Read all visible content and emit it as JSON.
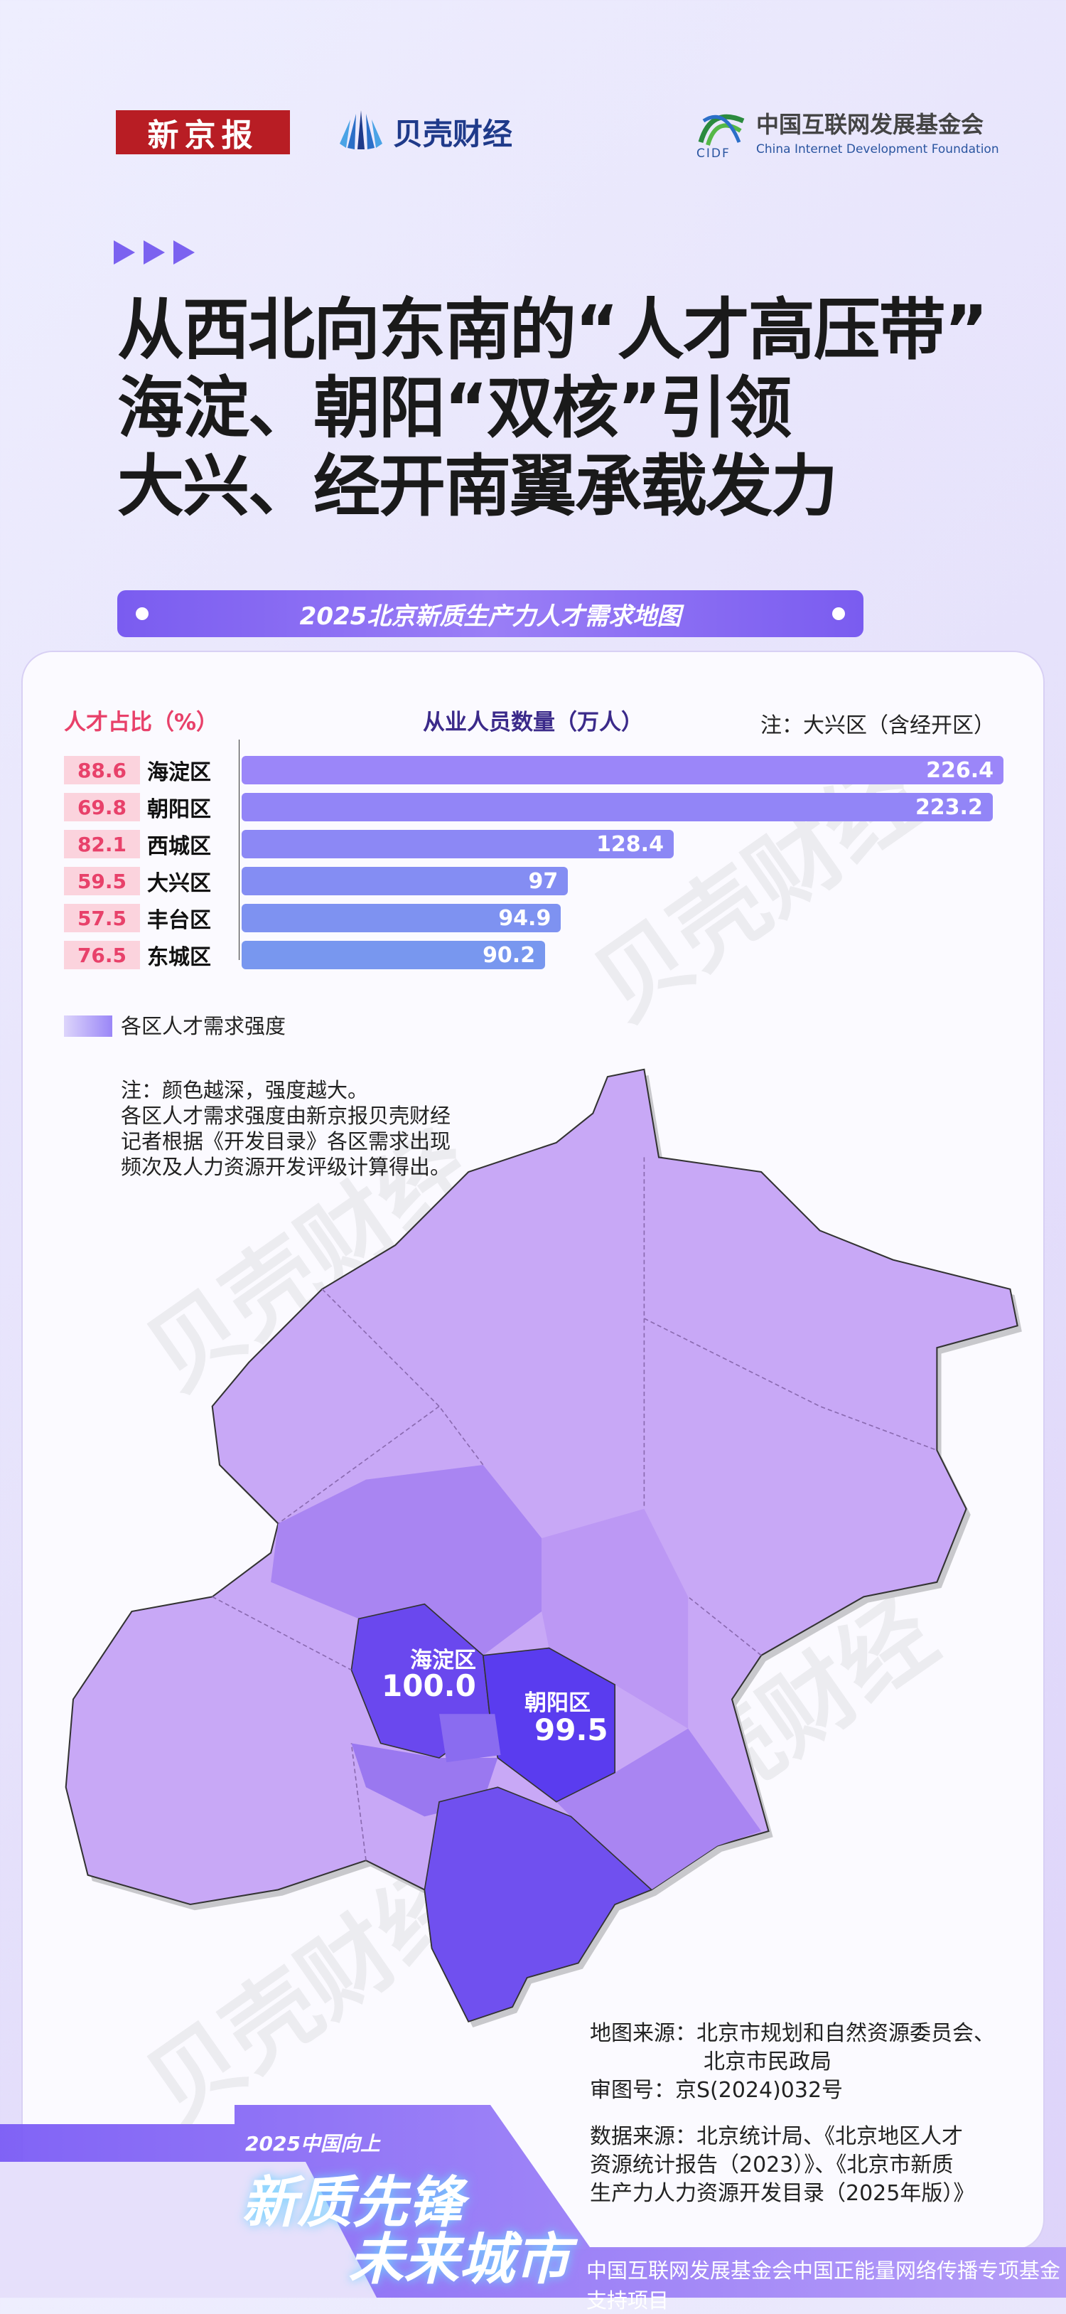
{
  "header": {
    "logos": [
      "新京报",
      "贝壳财经",
      "中国互联网发展基金会"
    ],
    "cidf_abbr": "CIDF",
    "cidf_en": "China Internet Development Foundation"
  },
  "title": {
    "lines": [
      "从西北向东南的“人才高压带”",
      "海淀、朝阳“双核”引领",
      "大兴、经开南翼承载发力"
    ]
  },
  "banner": "2025北京新质生产力人才需求地图",
  "chart_data": {
    "type": "bar",
    "orientation": "horizontal",
    "left_header": "人才占比（%）",
    "title": "从业人员数量（万人）",
    "note": "注：大兴区（含经开区）",
    "categories": [
      "海淀区",
      "朝阳区",
      "西城区",
      "大兴区",
      "丰台区",
      "东城区"
    ],
    "talent_share": [
      "88.6",
      "69.8",
      "82.1",
      "59.5",
      "57.5",
      "76.5"
    ],
    "values": [
      226.4,
      223.2,
      128.4,
      97,
      94.9,
      90.2
    ],
    "value_labels": [
      "226.4",
      "223.2",
      "128.4",
      "97",
      "94.9",
      "90.2"
    ],
    "bar_colors": [
      "#9b86f9",
      "#9285f7",
      "#8c88f5",
      "#848df3",
      "#7e92f1",
      "#7897ef"
    ]
  },
  "map": {
    "legend": "各区人才需求强度",
    "notes": [
      "注：颜色越深，强度越大。",
      "各区人才需求强度由新京报贝壳财经",
      "记者根据《开发目录》各区需求出现",
      "频次及人力资源开发评级计算得出。"
    ],
    "labels": [
      {
        "name": "海淀区",
        "value": "100.0"
      },
      {
        "name": "朝阳区",
        "value": "99.5"
      }
    ],
    "colors": {
      "low": "#c8a8f6",
      "mid": "#a985f2",
      "high": "#6a48ee",
      "top": "#5a3cef"
    }
  },
  "sources": {
    "map_source": [
      "地图来源：北京市规划和自然资源委员会、",
      "北京市民政局"
    ],
    "review_no": "审图号：京S(2024)032号",
    "data_source": [
      "数据来源：北京统计局、《北京地区人才",
      "资源统计报告（2023）》、《北京市新质",
      "生产力人力资源开发目录（2025年版）》"
    ]
  },
  "footer": {
    "slogan_small": "2025中国向上",
    "slogan_line1": "新质先锋",
    "slogan_line2": "未来城市",
    "support": "中国互联网发展基金会中国正能量网络传播专项基金支持项目"
  },
  "watermark": "贝壳财经"
}
